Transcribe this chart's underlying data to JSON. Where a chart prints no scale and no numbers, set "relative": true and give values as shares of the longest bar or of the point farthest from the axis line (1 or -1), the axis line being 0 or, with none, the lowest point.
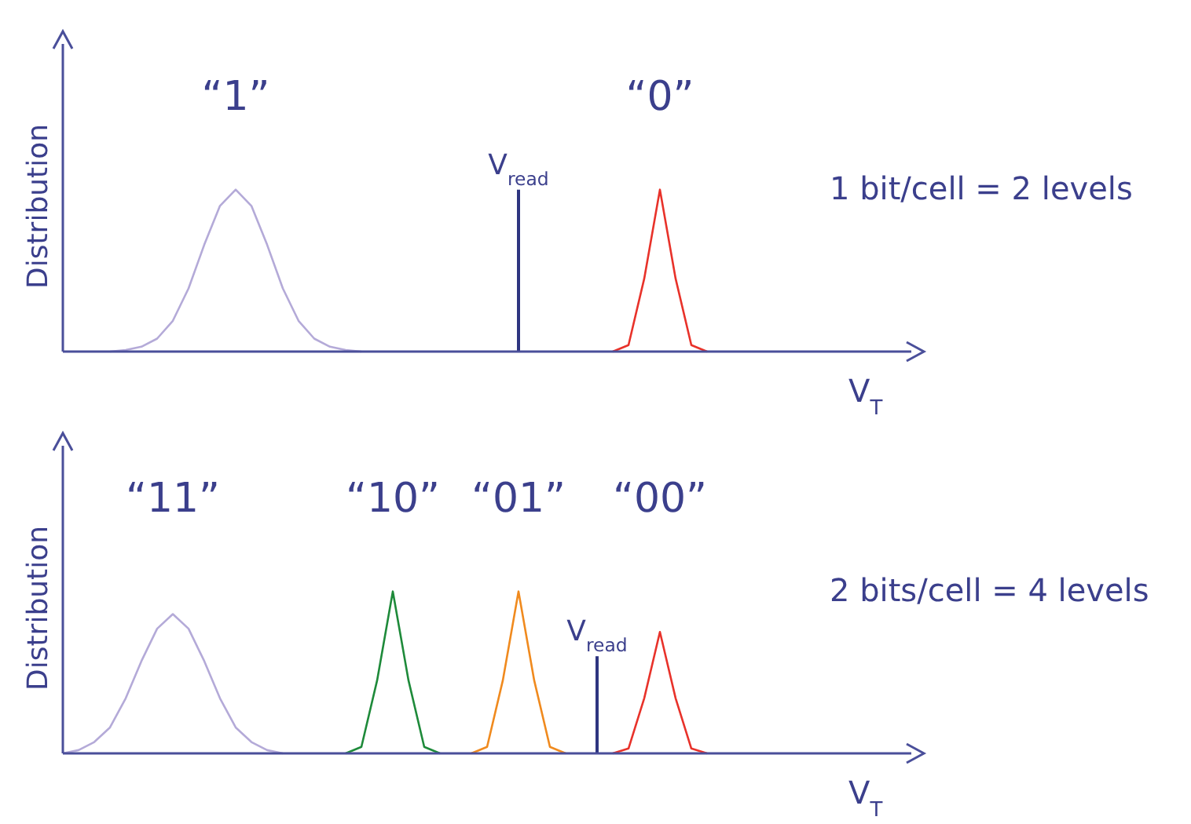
{
  "chart_data": [
    {
      "type": "line",
      "relative": true,
      "ylabel": "Distribution",
      "xlabel": "V$_{T}$",
      "annotations": [
        "1 bit/cell = 2 levels",
        "V$_{read}$"
      ],
      "grid": false,
      "legend": false,
      "marker": "none",
      "categories": [
        null,
        null,
        null,
        null,
        null,
        null,
        null,
        null,
        null,
        null,
        null,
        null,
        null,
        null,
        null,
        null,
        null,
        null,
        null,
        null,
        null,
        null,
        null,
        null,
        null,
        null,
        null,
        null,
        null,
        null,
        null,
        null,
        null,
        null,
        null,
        null,
        null,
        null,
        null,
        null,
        null,
        null,
        null,
        null,
        null,
        null,
        null,
        null,
        null,
        null,
        null,
        null,
        null,
        null,
        null
      ],
      "series": [
        {
          "name": "“1”",
          "color": "#b4aad8",
          "values": [
            null,
            null,
            null,
            0,
            0.01,
            0.03,
            0.08,
            0.19,
            0.39,
            0.66,
            0.9,
            1,
            0.9,
            0.66,
            0.39,
            0.19,
            0.08,
            0.03,
            0.01,
            0,
            null,
            null,
            null,
            null,
            null,
            null,
            null,
            null,
            null,
            null,
            null,
            null,
            null,
            null,
            null,
            null,
            null,
            null,
            null,
            null,
            null,
            null,
            null,
            null,
            null,
            null,
            null,
            null,
            null,
            null,
            null,
            null,
            null,
            null,
            null
          ]
        },
        {
          "name": "“0”",
          "color": "#e8322a",
          "values": [
            null,
            null,
            null,
            null,
            null,
            null,
            null,
            null,
            null,
            null,
            null,
            null,
            null,
            null,
            null,
            null,
            null,
            null,
            null,
            null,
            null,
            null,
            null,
            null,
            null,
            null,
            null,
            null,
            null,
            null,
            null,
            null,
            null,
            null,
            null,
            0,
            0.04,
            0.45,
            1,
            0.45,
            0.04,
            0,
            null,
            null,
            null,
            null,
            null,
            null,
            null,
            null,
            null,
            null,
            null,
            null,
            null
          ]
        }
      ]
    },
    {
      "type": "line",
      "relative": true,
      "ylabel": "Distribution",
      "xlabel": "V$_{T}$",
      "annotations": [
        "2 bits/cell = 4 levels",
        "V$_{read}$"
      ],
      "grid": false,
      "legend": false,
      "marker": "none",
      "categories": [
        null,
        null,
        null,
        null,
        null,
        null,
        null,
        null,
        null,
        null,
        null,
        null,
        null,
        null,
        null,
        null,
        null,
        null,
        null,
        null,
        null,
        null,
        null,
        null,
        null,
        null,
        null,
        null,
        null,
        null,
        null,
        null,
        null,
        null,
        null,
        null,
        null,
        null,
        null,
        null,
        null,
        null,
        null,
        null,
        null,
        null,
        null,
        null,
        null,
        null,
        null,
        null,
        null,
        null,
        null
      ],
      "series": [
        {
          "name": "“11”",
          "color": "#b4aad8",
          "values": [
            0,
            0.02,
            0.07,
            0.16,
            0.34,
            0.57,
            0.77,
            0.86,
            0.77,
            0.57,
            0.34,
            0.16,
            0.07,
            0.02,
            0,
            null,
            null,
            null,
            null,
            null,
            null,
            null,
            null,
            null,
            null,
            null,
            null,
            null,
            null,
            null,
            null,
            null,
            null,
            null,
            null,
            null,
            null,
            null,
            null,
            null,
            null,
            null,
            null,
            null,
            null,
            null,
            null,
            null,
            null,
            null,
            null,
            null,
            null,
            null,
            null
          ]
        },
        {
          "name": "“10”",
          "color": "#1e8a3a",
          "values": [
            null,
            null,
            null,
            null,
            null,
            null,
            null,
            null,
            null,
            null,
            null,
            null,
            null,
            null,
            null,
            null,
            null,
            null,
            0,
            0.04,
            0.45,
            1,
            0.45,
            0.04,
            0,
            null,
            null,
            null,
            null,
            null,
            null,
            null,
            null,
            null,
            null,
            null,
            null,
            null,
            null,
            null,
            null,
            null,
            null,
            null,
            null,
            null,
            null,
            null,
            null,
            null,
            null,
            null,
            null,
            null,
            null
          ]
        },
        {
          "name": "“01”",
          "color": "#f08a1e",
          "values": [
            null,
            null,
            null,
            null,
            null,
            null,
            null,
            null,
            null,
            null,
            null,
            null,
            null,
            null,
            null,
            null,
            null,
            null,
            null,
            null,
            null,
            null,
            null,
            null,
            null,
            null,
            0,
            0.04,
            0.45,
            1,
            0.45,
            0.04,
            0,
            null,
            null,
            null,
            null,
            null,
            null,
            null,
            null,
            null,
            null,
            null,
            null,
            null,
            null,
            null,
            null,
            null,
            null,
            null,
            null,
            null,
            null
          ]
        },
        {
          "name": "“00”",
          "color": "#e8322a",
          "values": [
            null,
            null,
            null,
            null,
            null,
            null,
            null,
            null,
            null,
            null,
            null,
            null,
            null,
            null,
            null,
            null,
            null,
            null,
            null,
            null,
            null,
            null,
            null,
            null,
            null,
            null,
            null,
            null,
            null,
            null,
            null,
            null,
            null,
            null,
            null,
            0,
            0.03,
            0.34,
            0.75,
            0.34,
            0.03,
            0,
            null,
            null,
            null,
            null,
            null,
            null,
            null,
            null,
            null,
            null,
            null,
            null,
            null
          ]
        }
      ]
    }
  ]
}
